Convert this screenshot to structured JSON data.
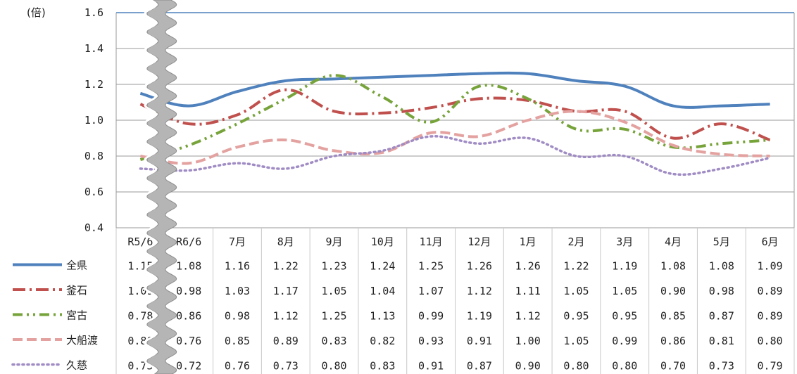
{
  "chart_data": {
    "type": "line",
    "unit_label": "(倍)",
    "ylim": [
      0.4,
      1.6
    ],
    "yticks": [
      "0.4",
      "0.6",
      "0.8",
      "1.0",
      "1.2",
      "1.4",
      "1.6"
    ],
    "grid": true,
    "axis_break_after_index": 0,
    "categories": [
      "R5/6",
      "R6/6",
      "7月",
      "8月",
      "9月",
      "10月",
      "11月",
      "12月",
      "1月",
      "2月",
      "3月",
      "4月",
      "5月",
      "6月"
    ],
    "legend_placement": "data-table-left",
    "series": [
      {
        "name": "全県",
        "color": "#4f81bd",
        "style": "solid",
        "values": [
          1.15,
          1.08,
          1.16,
          1.22,
          1.23,
          1.24,
          1.25,
          1.26,
          1.26,
          1.22,
          1.19,
          1.08,
          1.08,
          1.09
        ],
        "labels": [
          "1.15",
          "1.08",
          "1.16",
          "1.22",
          "1.23",
          "1.24",
          "1.25",
          "1.26",
          "1.26",
          "1.22",
          "1.19",
          "1.08",
          "1.08",
          "1.09"
        ]
      },
      {
        "name": "釜石",
        "color": "#c0504d",
        "style": "dashdot",
        "values": [
          1.09,
          0.98,
          1.03,
          1.17,
          1.05,
          1.04,
          1.07,
          1.12,
          1.11,
          1.05,
          1.05,
          0.9,
          0.98,
          0.89
        ],
        "labels": [
          "1.09",
          "0.98",
          "1.03",
          "1.17",
          "1.05",
          "1.04",
          "1.07",
          "1.12",
          "1.11",
          "1.05",
          "1.05",
          "0.90",
          "0.98",
          "0.89"
        ]
      },
      {
        "name": "宮古",
        "color": "#77a33b",
        "style": "dashdotdot",
        "values": [
          0.78,
          0.86,
          0.98,
          1.12,
          1.25,
          1.13,
          0.99,
          1.19,
          1.12,
          0.95,
          0.95,
          0.85,
          0.87,
          0.89
        ],
        "labels": [
          "0.78",
          "0.86",
          "0.98",
          "1.12",
          "1.25",
          "1.13",
          "0.99",
          "1.19",
          "1.12",
          "0.95",
          "0.95",
          "0.85",
          "0.87",
          "0.89"
        ]
      },
      {
        "name": "大船渡",
        "color": "#e3a2a0",
        "style": "dash",
        "values": [
          0.8,
          0.76,
          0.85,
          0.89,
          0.83,
          0.82,
          0.93,
          0.91,
          1.0,
          1.05,
          0.99,
          0.86,
          0.81,
          0.8
        ],
        "labels": [
          "0.80",
          "0.76",
          "0.85",
          "0.89",
          "0.83",
          "0.82",
          "0.93",
          "0.91",
          "1.00",
          "1.05",
          "0.99",
          "0.86",
          "0.81",
          "0.80"
        ]
      },
      {
        "name": "久慈",
        "color": "#a08cc4",
        "style": "dot",
        "values": [
          0.73,
          0.72,
          0.76,
          0.73,
          0.8,
          0.83,
          0.91,
          0.87,
          0.9,
          0.8,
          0.8,
          0.7,
          0.73,
          0.79
        ],
        "labels": [
          "0.73",
          "0.72",
          "0.76",
          "0.73",
          "0.80",
          "0.83",
          "0.91",
          "0.87",
          "0.90",
          "0.80",
          "0.80",
          "0.70",
          "0.73",
          "0.79"
        ]
      }
    ]
  }
}
